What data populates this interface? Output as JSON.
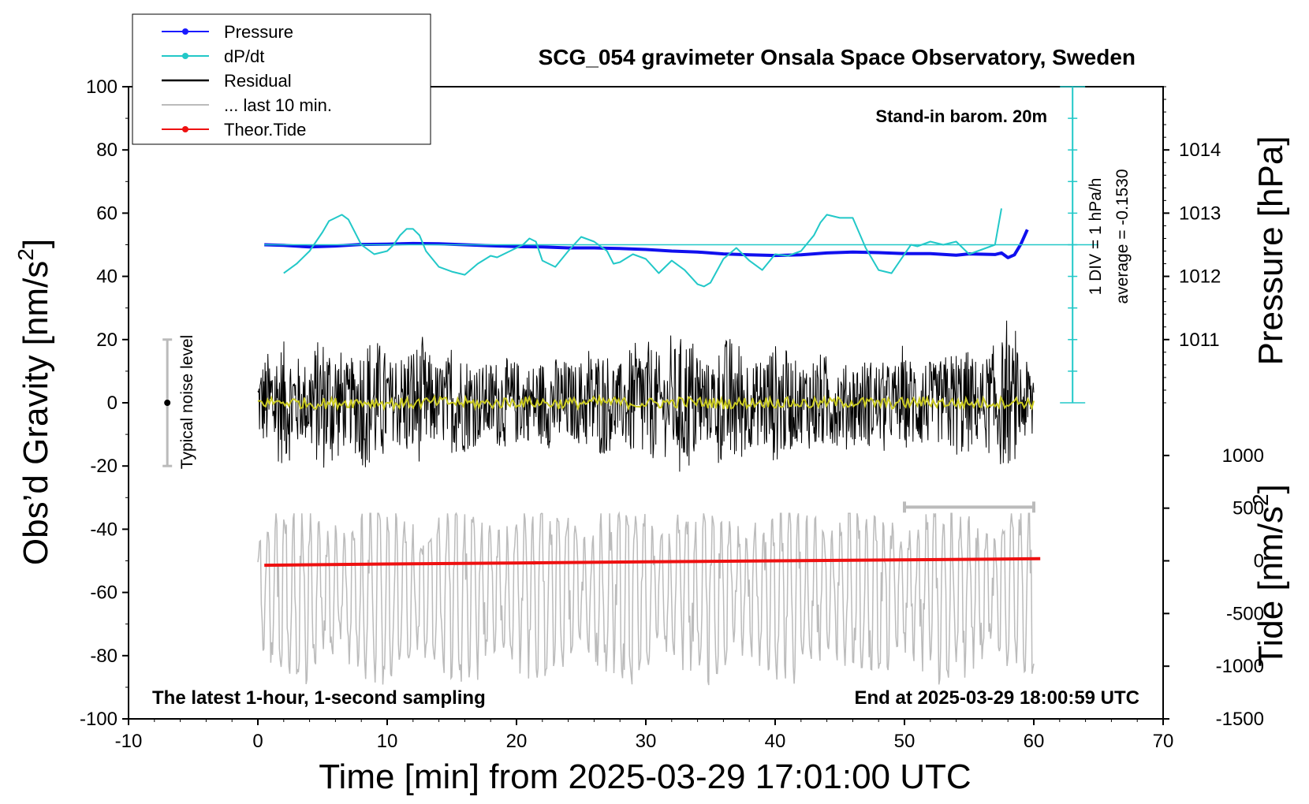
{
  "chart_data": {
    "type": "line",
    "title": "SCG_054 gravimeter Onsala Space Observatory, Sweden",
    "xlabel": "Time [min] from 2025-03-29 17:01:00 UTC",
    "ylabel_left": "Obs’d Gravity [nm/s",
    "ylabel_left_sup": "2",
    "ylabel_left_end": "]",
    "ylabel_right_pressure": "Pressure [hPa]",
    "ylabel_right_tide": "Tide [nm/s",
    "ylabel_right_tide_sup": "2",
    "ylabel_right_tide_end": "]",
    "xlim": [
      -10,
      70
    ],
    "ylim": [
      -100,
      100
    ],
    "x_ticks": [
      "-10",
      "0",
      "10",
      "20",
      "30",
      "40",
      "50",
      "60",
      "70"
    ],
    "y_ticks": [
      "100",
      "80",
      "60",
      "40",
      "20",
      "0",
      "-20",
      "-40",
      "-60",
      "-80",
      "-100"
    ],
    "pressure_ticks": [
      "1014",
      "1013",
      "1012",
      "1011"
    ],
    "tide_ticks": [
      "1000",
      "500",
      "0",
      "-500",
      "-1000",
      "-1500"
    ],
    "annotations": {
      "barometer": "Stand-in barom. 20m",
      "div": "1 DIV = 1 hPa/h",
      "average": "average = -0.1530",
      "noise": "Typical noise level",
      "bottom_left": "The latest 1-hour, 1-second sampling",
      "bottom_right": "End at 2025-03-29 18:00:59 UTC"
    },
    "legend": [
      {
        "label": "Pressure",
        "color": "#1a1aff",
        "marker": true
      },
      {
        "label": "dP/dt",
        "color": "#22c8c8",
        "marker": true
      },
      {
        "label": "Residual",
        "color": "#000000",
        "marker": false
      },
      {
        "label": "... last 10 min.",
        "color": "#bbbbbb",
        "marker": false
      },
      {
        "label": "Theor.Tide",
        "color": "#ee1111",
        "marker": true
      }
    ],
    "series": [
      {
        "name": "Pressure",
        "axis": "gravity-units",
        "color": "#1010ee",
        "x": [
          0.5,
          2,
          4,
          6,
          8,
          10,
          12,
          14,
          16,
          18,
          20,
          22,
          24,
          26,
          28,
          30,
          32,
          34,
          36,
          38,
          40,
          42,
          44,
          46,
          48,
          50,
          52,
          54,
          55,
          56,
          57,
          57.5,
          58,
          58.5,
          59,
          59.5
        ],
        "y": [
          50.0,
          49.8,
          49.3,
          49.6,
          50.1,
          50.2,
          50.4,
          50.3,
          50.0,
          49.7,
          49.4,
          49.3,
          49.0,
          49.0,
          48.8,
          48.5,
          48.0,
          47.7,
          47.1,
          46.8,
          46.6,
          46.8,
          47.4,
          47.7,
          47.5,
          47.2,
          47.2,
          46.7,
          47.1,
          47.0,
          46.9,
          47.4,
          45.9,
          46.8,
          50.2,
          54.8
        ]
      },
      {
        "name": "dP/dt",
        "axis": "gravity-units",
        "color": "#22c8c8",
        "x": [
          2,
          3,
          4,
          5,
          5.5,
          6,
          6.5,
          7,
          8,
          9,
          10,
          10.5,
          11,
          11.5,
          12,
          12.5,
          13,
          14,
          15,
          16,
          17,
          18,
          18.5,
          19.5,
          20.5,
          21,
          21.5,
          22,
          22.5,
          23,
          24,
          25,
          26,
          27,
          27.5,
          28,
          29,
          30,
          31,
          32,
          33,
          34,
          34.5,
          35,
          36,
          37,
          38,
          39,
          40,
          41,
          42,
          43,
          43.5,
          44,
          45,
          46,
          47,
          48,
          49,
          50,
          50.5,
          51,
          52,
          53,
          54,
          55,
          56,
          57,
          57.5
        ],
        "y": [
          41.0,
          44.0,
          48.0,
          54.0,
          57.5,
          58.5,
          59.5,
          58.0,
          50.0,
          47.0,
          48.0,
          50.0,
          53.0,
          55.0,
          55.0,
          53.0,
          48.0,
          43.0,
          41.5,
          40.5,
          44.0,
          46.5,
          46.0,
          48.0,
          50.0,
          52.0,
          51.0,
          45.0,
          44.0,
          43.0,
          48.0,
          52.5,
          51.0,
          48.0,
          44.0,
          44.5,
          47.0,
          45.5,
          41.0,
          45.0,
          42.0,
          37.5,
          36.8,
          38.0,
          45.5,
          49.0,
          45.0,
          42.0,
          47.0,
          46.5,
          48.0,
          53.0,
          57.0,
          59.5,
          58.5,
          58.5,
          49.0,
          42.0,
          41.0,
          47.0,
          50.0,
          49.5,
          51.0,
          50.0,
          51.0,
          47.0,
          48.5,
          50.0,
          61.5
        ]
      },
      {
        "name": "Residual",
        "axis": "gravity",
        "color": "#000000",
        "x_range": [
          0,
          60
        ],
        "amplitude_nm_s2": [
          -30,
          31
        ]
      },
      {
        "name": "Residual smoothed",
        "axis": "gravity",
        "color": "#cccc22",
        "x_range": [
          0,
          60
        ],
        "amplitude_nm_s2": [
          -2,
          3
        ]
      },
      {
        "name": "... last 10 min.",
        "axis": "gravity",
        "color": "#bbbbbb",
        "x_range": [
          0,
          60
        ],
        "y_range": [
          -90,
          -35
        ]
      },
      {
        "name": "Theor.Tide",
        "axis": "tide",
        "color": "#ee1111",
        "x": [
          0.5,
          10,
          20,
          30,
          40,
          50,
          60.5
        ],
        "y": [
          -42,
          -30,
          -20,
          -10,
          0,
          10,
          20
        ]
      }
    ],
    "noise_bar": {
      "x": -7,
      "y_center": 0,
      "y_min": -20,
      "y_max": 20
    },
    "ten_minute_bar": {
      "x_start": 50,
      "x_end": 60,
      "y": -33
    },
    "pressure_scale": {
      "x": 63,
      "y_top": 100,
      "y_bottom": 0
    }
  }
}
